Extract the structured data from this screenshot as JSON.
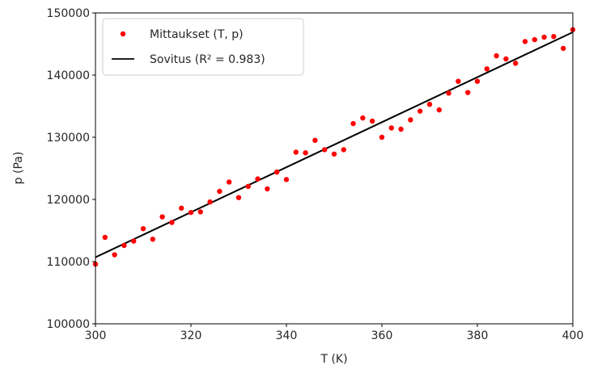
{
  "chart_data": {
    "type": "scatter",
    "xlabel": "T (K)",
    "ylabel": "p (Pa)",
    "xlim": [
      300,
      400
    ],
    "ylim": [
      100000,
      150000
    ],
    "xticks": [
      300,
      320,
      340,
      360,
      380,
      400
    ],
    "xtick_labels": [
      "300",
      "320",
      "340",
      "360",
      "380",
      "400"
    ],
    "yticks": [
      100000,
      110000,
      120000,
      130000,
      140000,
      150000
    ],
    "ytick_labels": [
      "100000",
      "110000",
      "120000",
      "130000",
      "140000",
      "150000"
    ],
    "grid": false,
    "legend_position": "top-left",
    "series": [
      {
        "name": "Mittaukset (T, p)",
        "kind": "scatter",
        "color": "#ff0000",
        "x": [
          300,
          302,
          304,
          306,
          308,
          310,
          312,
          314,
          316,
          318,
          320,
          322,
          324,
          326,
          328,
          330,
          332,
          334,
          336,
          338,
          340,
          342,
          344,
          346,
          348,
          350,
          352,
          354,
          356,
          358,
          360,
          362,
          364,
          366,
          368,
          370,
          372,
          374,
          376,
          378,
          380,
          382,
          384,
          386,
          388,
          390,
          392,
          394,
          396,
          398,
          400
        ],
        "y": [
          109600,
          113900,
          111100,
          112600,
          113300,
          115300,
          113600,
          117200,
          116300,
          118600,
          117900,
          118000,
          119600,
          121300,
          122800,
          120300,
          122100,
          123300,
          121700,
          124400,
          123200,
          127600,
          127500,
          129500,
          128000,
          127300,
          128000,
          132200,
          133100,
          132600,
          130000,
          131500,
          131300,
          132800,
          134200,
          135300,
          134400,
          137100,
          139000,
          137200,
          139000,
          141000,
          143100,
          142600,
          141900,
          145400,
          145700,
          146100,
          146200,
          144300,
          147300
        ]
      },
      {
        "name": "Sovitus (R² = 0.983)",
        "kind": "line",
        "color": "#000000",
        "x": [
          300,
          400
        ],
        "y": [
          110700,
          146900
        ]
      }
    ]
  }
}
